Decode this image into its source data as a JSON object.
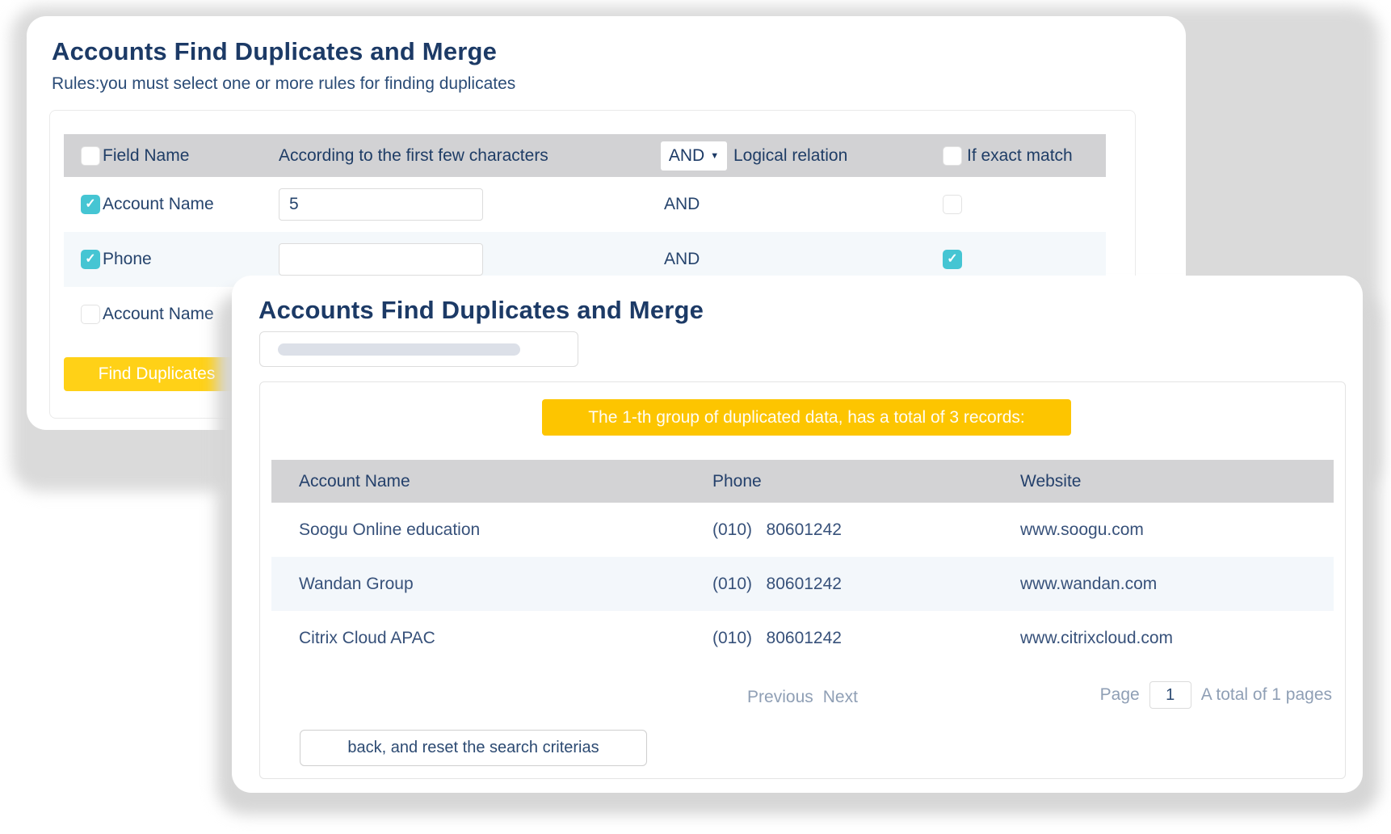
{
  "colors": {
    "accent_yellow": "#fdc500",
    "button_yellow": "#ffd117",
    "checkbox_teal": "#45c5d3",
    "title_navy": "#1c3a66",
    "header_gray": "#d2d2d4",
    "alt_row_blue": "#f4f8fb"
  },
  "back_card": {
    "title": "Accounts Find Duplicates and Merge",
    "subtitle": "Rules:you must select one or more rules for finding duplicates",
    "table": {
      "header": {
        "field_name": "Field Name",
        "prefix": "According to the first few characters",
        "relation_value": "AND",
        "relation_label": "Logical relation",
        "exact_label": "If exact match"
      },
      "rows": [
        {
          "label": "Account Name",
          "checked": true,
          "chars": "5",
          "relation": "AND",
          "exact_checked": false
        },
        {
          "label": "Phone",
          "checked": true,
          "chars": "",
          "relation": "AND",
          "exact_checked": true
        },
        {
          "label": "Account Name",
          "checked": false
        }
      ]
    },
    "find_button_label": "Find Duplicates"
  },
  "front_card": {
    "title": "Accounts Find Duplicates and Merge",
    "banner": "The 1-th group of duplicated data, has a total of 3 records:",
    "table": {
      "columns": [
        "Account Name",
        "Phone",
        "Website"
      ],
      "rows": [
        [
          "Soogu Online education",
          "(010)   80601242",
          "www.soogu.com"
        ],
        [
          "Wandan Group",
          "(010)   80601242",
          "www.wandan.com"
        ],
        [
          "Citrix Cloud APAC",
          "(010)   80601242",
          "www.citrixcloud.com"
        ]
      ]
    },
    "pagination": {
      "previous_label": "Previous",
      "next_label": "Next",
      "page_label": "Page",
      "page_value": "1",
      "total_label": "A total of 1 pages"
    },
    "back_button_label": "back, and reset the search criterias"
  }
}
